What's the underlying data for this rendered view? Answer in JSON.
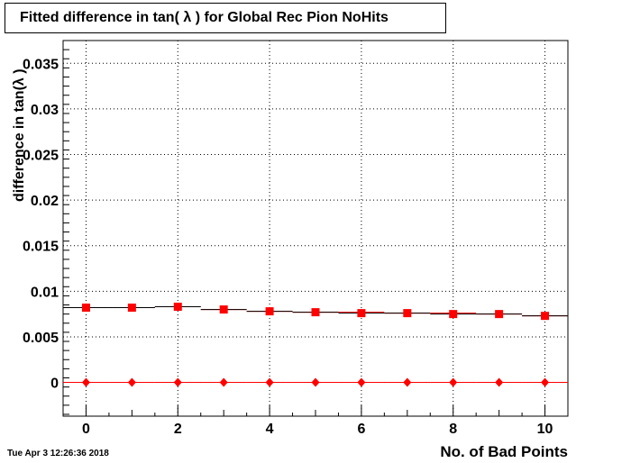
{
  "chart_data": {
    "type": "scatter",
    "title": "Fitted difference in tan( λ ) for Global Rec Pion NoHits",
    "xlabel": "No. of Bad Points",
    "ylabel": "difference in tan(λ )",
    "xlim": [
      -0.5,
      10.5
    ],
    "ylim": [
      -0.0037,
      0.0375
    ],
    "x_ticks": [
      0,
      2,
      4,
      6,
      8,
      10
    ],
    "y_ticks": [
      "0",
      "0.005",
      "0.01",
      "0.015",
      "0.02",
      "0.025",
      "0.03",
      "0.035"
    ],
    "grid": true,
    "series": [
      {
        "marker": "square",
        "color": "#ff0000",
        "x": [
          0,
          1,
          2,
          3,
          4,
          5,
          6,
          7,
          8,
          9,
          10
        ],
        "y": [
          0.0082,
          0.0082,
          0.0083,
          0.008,
          0.0078,
          0.0077,
          0.0076,
          0.0076,
          0.0075,
          0.0075,
          0.0073
        ],
        "yerr": [
          0.0003,
          0.0003,
          0.0003,
          0.0003,
          0.0003,
          0.0003,
          0.0003,
          0.0003,
          0.0003,
          0.0003,
          0.0003
        ],
        "fit": [
          0.0082,
          0.0082,
          0.0083,
          0.008,
          0.0078,
          0.0077,
          0.0077,
          0.0076,
          0.0076,
          0.0075,
          0.0073
        ]
      },
      {
        "marker": "diamond",
        "color": "#ff0000",
        "x": [
          0,
          1,
          2,
          3,
          4,
          5,
          6,
          7,
          8,
          9,
          10
        ],
        "y": [
          0,
          0,
          0,
          0,
          0,
          0,
          0,
          0,
          0,
          0,
          0
        ],
        "fit": [
          0,
          0,
          0,
          0,
          0,
          0,
          0,
          0,
          0,
          0,
          0
        ]
      }
    ]
  },
  "footer": {
    "timestamp": "Tue Apr  3 12:26:36 2018"
  }
}
